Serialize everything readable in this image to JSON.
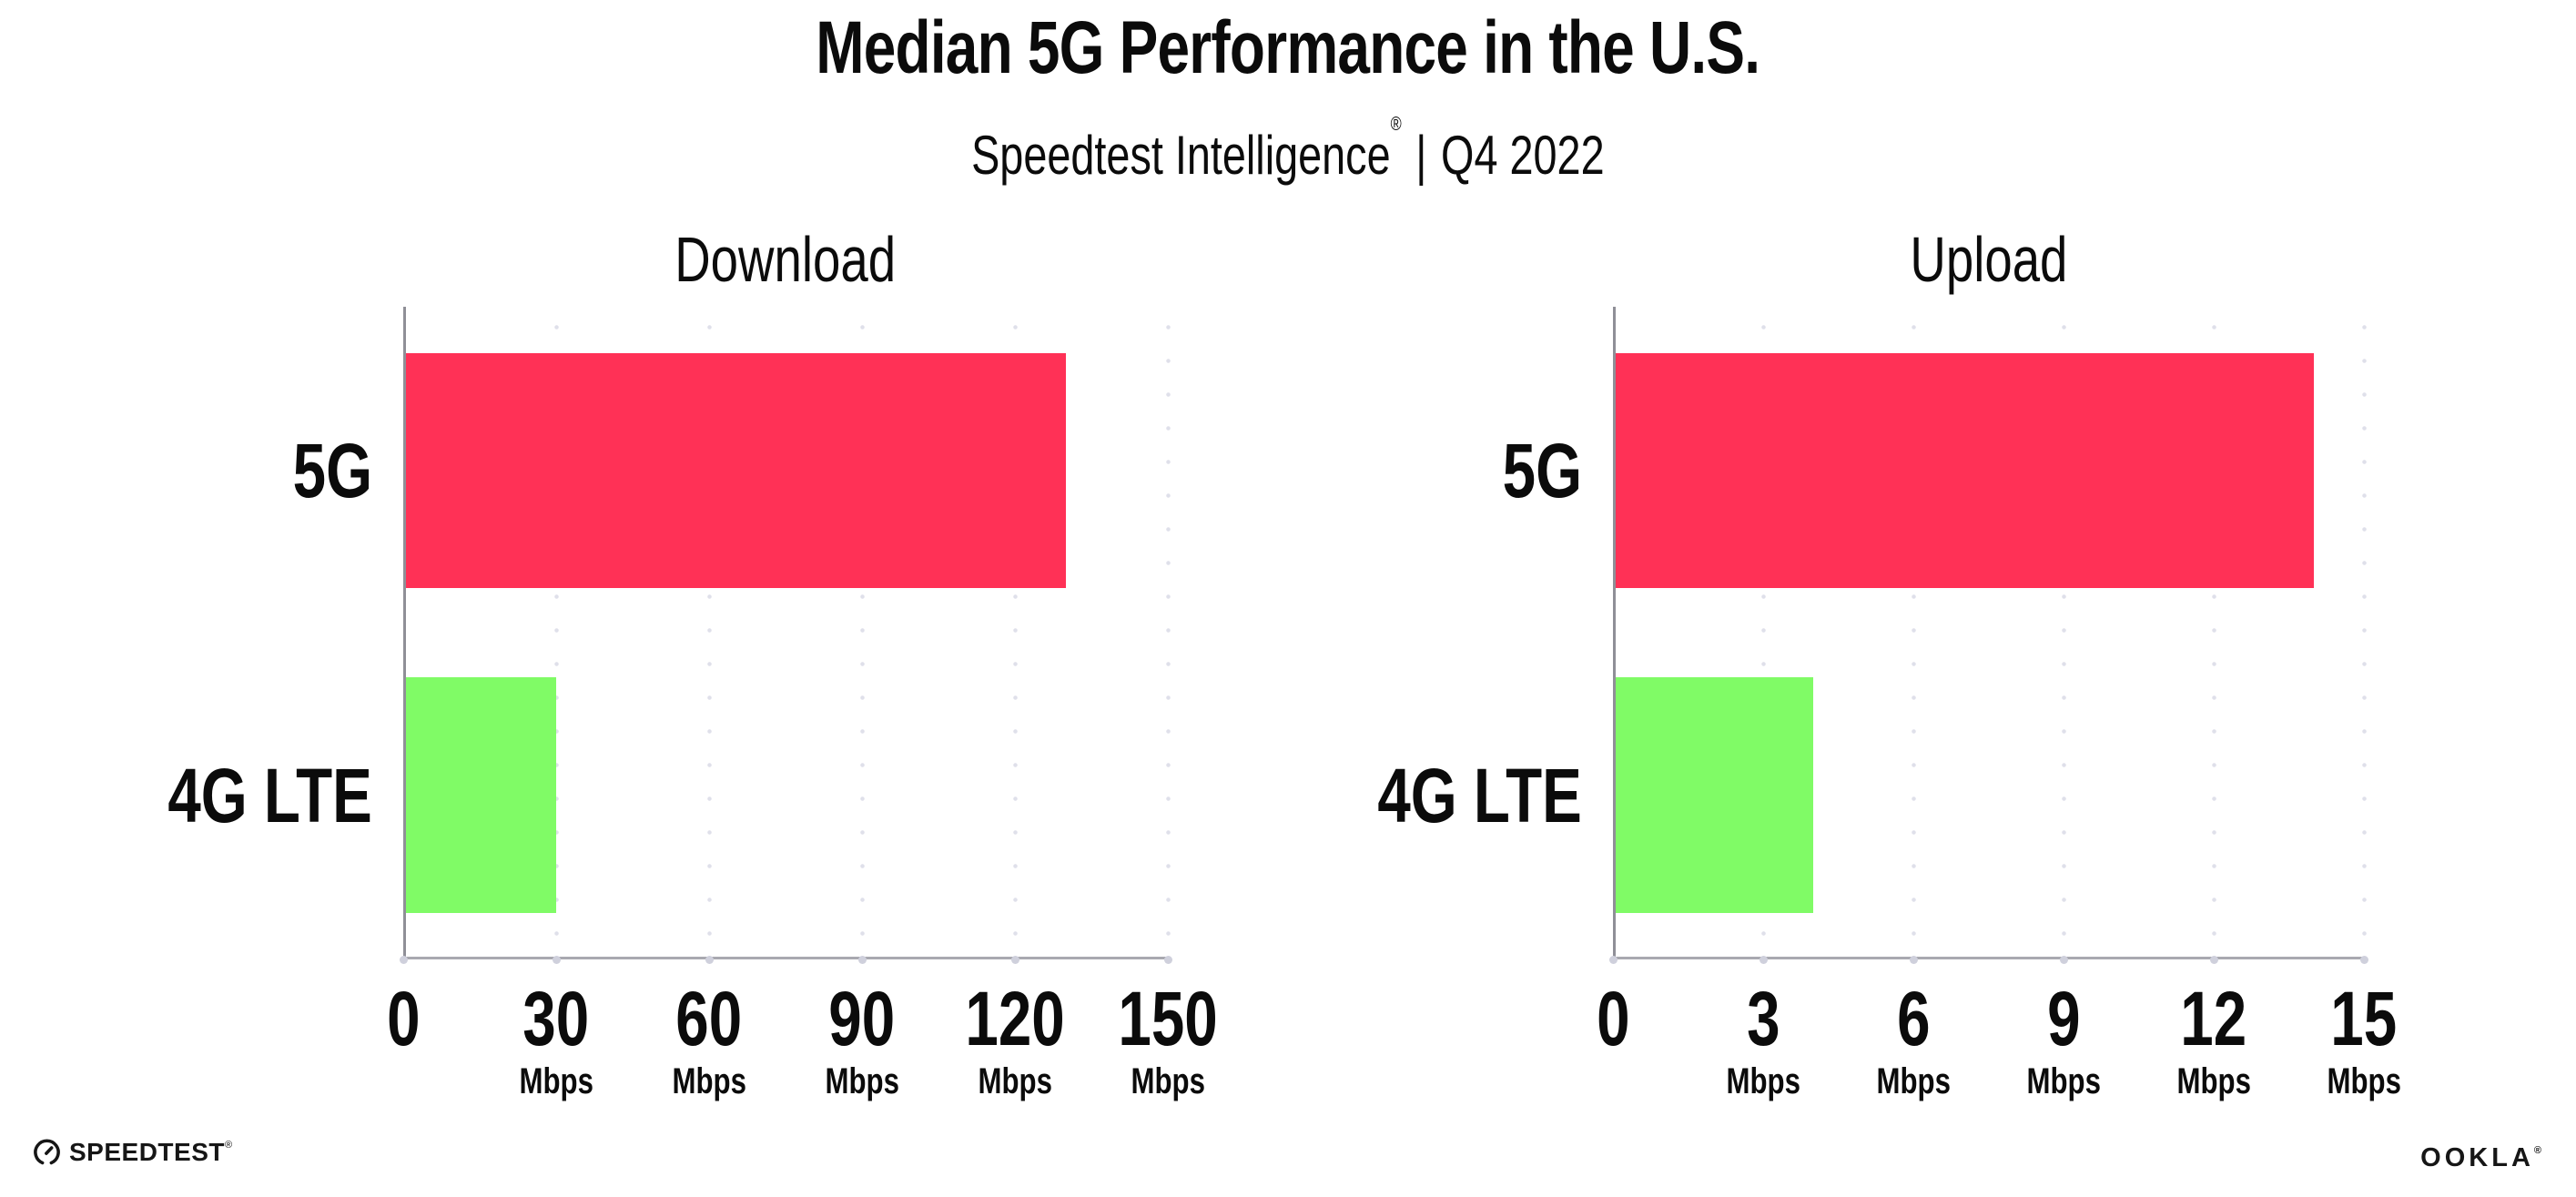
{
  "title": "Median 5G Performance in the U.S.",
  "subtitle": {
    "brand": "Speedtest Intelligence",
    "reg_mark": "®",
    "separator": "|",
    "period": "Q4 2022"
  },
  "footer": {
    "speedtest_logo": "SPEEDTEST",
    "speedtest_mark": "®",
    "ookla_logo": "OOKLA",
    "ookla_mark": "®"
  },
  "colors": {
    "bar_5g_pink": "#ff3156",
    "bar_4g_green": "#80fb66",
    "gridline": "#dfe0ea",
    "axis_gray": "#9a9aa0",
    "text_black": "#0b0b0b"
  },
  "chart_data": [
    {
      "type": "bar",
      "orientation": "horizontal",
      "title": "Download",
      "categories": [
        "5G",
        "4G LTE"
      ],
      "values": [
        130,
        30
      ],
      "unit": "Mbps",
      "xlim": [
        0,
        150
      ],
      "ticks": [
        0,
        30,
        60,
        90,
        120,
        150
      ],
      "tick_unit_label": "Mbps",
      "grid": "vertical dotted, at every tick except 0",
      "legend": "none",
      "bar_colors": [
        "#ff3156",
        "#80fb66"
      ]
    },
    {
      "type": "bar",
      "orientation": "horizontal",
      "title": "Upload",
      "categories": [
        "5G",
        "4G LTE"
      ],
      "values": [
        14,
        4
      ],
      "unit": "Mbps",
      "xlim": [
        0,
        15
      ],
      "ticks": [
        0,
        3,
        6,
        9,
        12,
        15
      ],
      "tick_unit_label": "Mbps",
      "grid": "vertical dotted, at every tick except 0",
      "legend": "none",
      "bar_colors": [
        "#ff3156",
        "#80fb66"
      ]
    }
  ]
}
